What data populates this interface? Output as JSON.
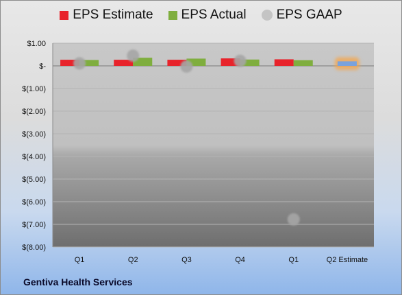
{
  "chart_data": {
    "type": "bar",
    "company": "Gentiva Health Services",
    "categories": [
      "Q1",
      "Q2",
      "Q3",
      "Q4",
      "Q1",
      "Q2 Estimate"
    ],
    "series": [
      {
        "name": "EPS Estimate",
        "color": "#e8232b",
        "values": [
          0.27,
          0.27,
          0.27,
          0.33,
          0.29,
          null
        ]
      },
      {
        "name": "EPS Actual",
        "color": "#7fae3e",
        "values": [
          0.26,
          0.36,
          0.32,
          0.28,
          0.25,
          null
        ]
      },
      {
        "name": "EPS GAAP",
        "color": "#a6a6a6",
        "values": [
          0.11,
          0.45,
          -0.03,
          0.22,
          -6.78,
          null
        ]
      }
    ],
    "estimate": {
      "category": "Q2 Estimate",
      "value": 0.2,
      "color": "#7aa2dc",
      "highlight": "#f5a64b"
    },
    "y_ticks": [
      {
        "value": 1,
        "label": "$1.00"
      },
      {
        "value": 0,
        "label": "$-"
      },
      {
        "value": -1,
        "label": "$(1.00)"
      },
      {
        "value": -2,
        "label": "$(2.00)"
      },
      {
        "value": -3,
        "label": "$(3.00)"
      },
      {
        "value": -4,
        "label": "$(4.00)"
      },
      {
        "value": -5,
        "label": "$(5.00)"
      },
      {
        "value": -6,
        "label": "$(6.00)"
      },
      {
        "value": -7,
        "label": "$(7.00)"
      },
      {
        "value": -8,
        "label": "$(8.00)"
      }
    ],
    "ylim": [
      -8,
      1
    ],
    "grid": true,
    "legend_position": "top"
  }
}
